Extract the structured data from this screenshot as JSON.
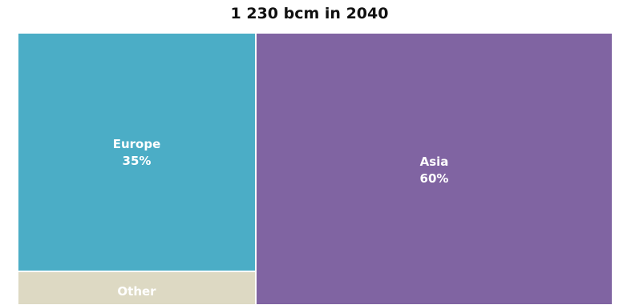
{
  "chart_data": {
    "type": "treemap",
    "title": "1 230 bcm in 2040",
    "tiles": [
      {
        "name": "Europe",
        "value": 35,
        "label": "35%",
        "color": "#4badc6"
      },
      {
        "name": "Asia",
        "value": 60,
        "label": "60%",
        "color": "#8064a2"
      },
      {
        "name": "Other",
        "value": 5,
        "label": "",
        "color": "#ddd9c3"
      }
    ]
  }
}
